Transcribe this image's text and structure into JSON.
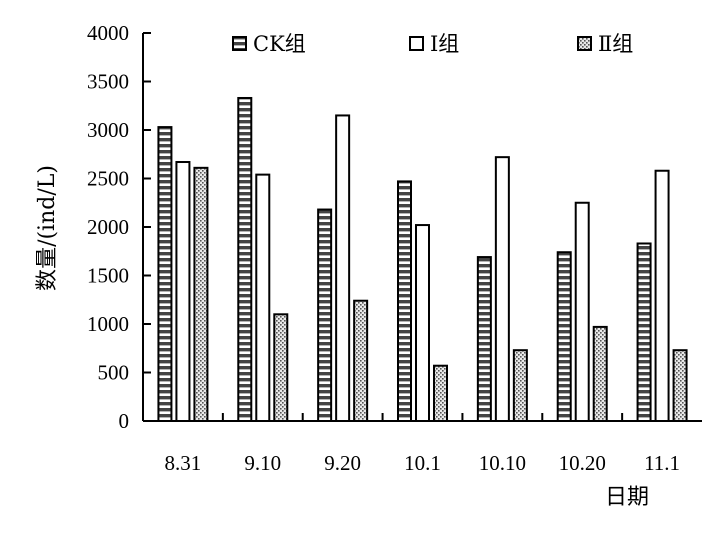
{
  "chart_data": {
    "type": "bar",
    "title": "",
    "xlabel": "日期",
    "ylabel": "数量/(ind/L)",
    "categories": [
      "8.31",
      "9.10",
      "9.20",
      "10.1",
      "10.10",
      "10.20",
      "11.1"
    ],
    "ylim": [
      0,
      4000
    ],
    "yticks": [
      "0",
      "500",
      "1000",
      "1500",
      "2000",
      "2500",
      "3000",
      "3500",
      "4000"
    ],
    "grid": false,
    "legend_position": "top",
    "series": [
      {
        "name": "CK组",
        "pattern": "horizontal-stripes",
        "values": [
          3030,
          3330,
          2180,
          2470,
          1690,
          1740,
          1830
        ]
      },
      {
        "name": "Ⅰ组",
        "pattern": "white",
        "values": [
          2670,
          2540,
          3150,
          2020,
          2720,
          2250,
          2580
        ]
      },
      {
        "name": "Ⅱ组",
        "pattern": "dotted",
        "values": [
          2610,
          1100,
          1240,
          570,
          730,
          970,
          730
        ]
      }
    ]
  }
}
